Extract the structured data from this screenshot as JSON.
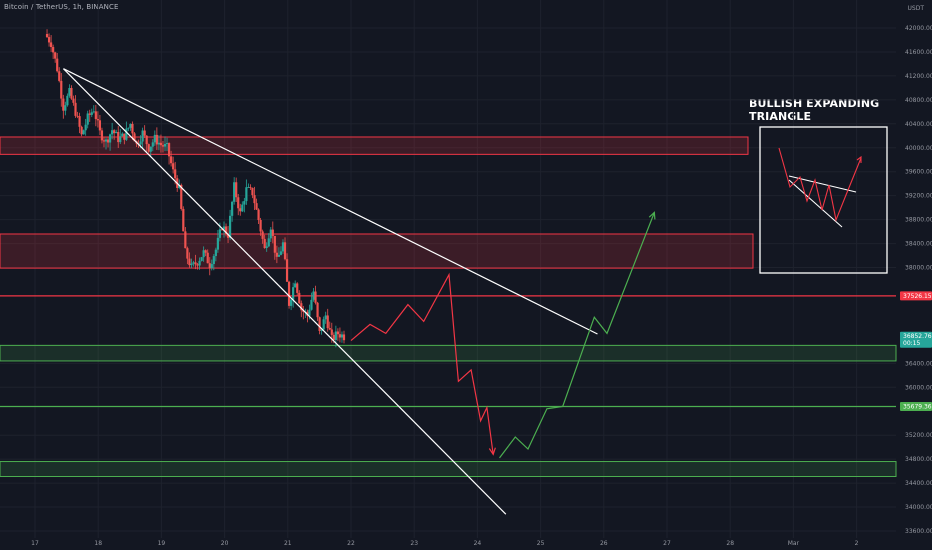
{
  "header": {
    "symbol": "Bitcoin / TetherUS, 1h, BINANCE",
    "currency": "USDT"
  },
  "inset": {
    "title": "BULLISH EXPANDING TRIANGLE"
  },
  "colors": {
    "background": "#131722",
    "up": "#26a69a",
    "down": "#ef5350",
    "resistance": "#f23645",
    "support": "#4caf50",
    "projection_down": "#f23645",
    "projection_up": "#4caf50",
    "trendline": "#ffffff"
  },
  "chart_data": {
    "type": "candlestick",
    "x": {
      "tick_labels": [
        "17",
        "18",
        "19",
        "20",
        "21",
        "22",
        "23",
        "24",
        "25",
        "26",
        "27",
        "28",
        "Mar",
        "2"
      ]
    },
    "y": {
      "tick_labels": [
        "42000.00",
        "41600.00",
        "41200.00",
        "40800.00",
        "40400.00",
        "40000.00",
        "39600.00",
        "39200.00",
        "38800.00",
        "38400.00",
        "38000.00",
        "36400.00",
        "36000.00",
        "35200.00",
        "34800.00",
        "34400.00",
        "34000.00",
        "33600.00"
      ],
      "range": [
        33500,
        42400
      ]
    },
    "price_tags": [
      {
        "value": "37526.15",
        "style": "resistance"
      },
      {
        "value": "36852.76",
        "style": "current",
        "countdown": "00:15"
      },
      {
        "value": "35679.36",
        "style": "support"
      }
    ],
    "zones": [
      {
        "kind": "resistance",
        "from": 39890,
        "to": 40180
      },
      {
        "kind": "resistance",
        "from": 37990,
        "to": 38560
      },
      {
        "kind": "support",
        "from": 36440,
        "to": 36700
      },
      {
        "kind": "support",
        "from": 34510,
        "to": 34760
      }
    ],
    "levels": [
      {
        "kind": "resistance",
        "value": 37526.15
      },
      {
        "kind": "support",
        "value": 35679.36
      }
    ],
    "trendlines": [
      {
        "name": "upper",
        "from": [
          "17.45",
          41320
        ],
        "to": [
          "25.9",
          36890
        ]
      },
      {
        "name": "lower",
        "from": [
          "17.45",
          41320
        ],
        "to": [
          "24.45",
          33880
        ]
      }
    ],
    "projection_down": [
      [
        "22.0",
        36780
      ],
      [
        "22.3",
        37050
      ],
      [
        "22.55",
        36900
      ],
      [
        "22.9",
        37380
      ],
      [
        "23.15",
        37100
      ],
      [
        "23.55",
        37880
      ],
      [
        "23.7",
        36100
      ],
      [
        "23.9",
        36290
      ],
      [
        "24.05",
        35440
      ],
      [
        "24.15",
        35660
      ],
      [
        "24.25",
        34880
      ]
    ],
    "projection_up": [
      [
        "24.35",
        34820
      ],
      [
        "24.6",
        35170
      ],
      [
        "24.8",
        34970
      ],
      [
        "25.1",
        35640
      ],
      [
        "25.35",
        35680
      ],
      [
        "25.85",
        37170
      ],
      [
        "26.05",
        36900
      ],
      [
        "26.8",
        38920
      ]
    ],
    "price_path": [
      41900,
      41750,
      41320,
      40680,
      40920,
      40600,
      40200,
      40500,
      40650,
      40250,
      40100,
      40300,
      40150,
      40200,
      40400,
      40050,
      40250,
      40000,
      40150,
      40050,
      40000,
      39600,
      39300,
      38250,
      38000,
      38100,
      38250,
      38050,
      38300,
      38700,
      38550,
      39350,
      38900,
      39300,
      39250,
      38800,
      38300,
      38700,
      38100,
      38400,
      37400,
      37800,
      37300,
      37200,
      37600,
      36900,
      37200,
      36800,
      36900,
      36852
    ]
  }
}
